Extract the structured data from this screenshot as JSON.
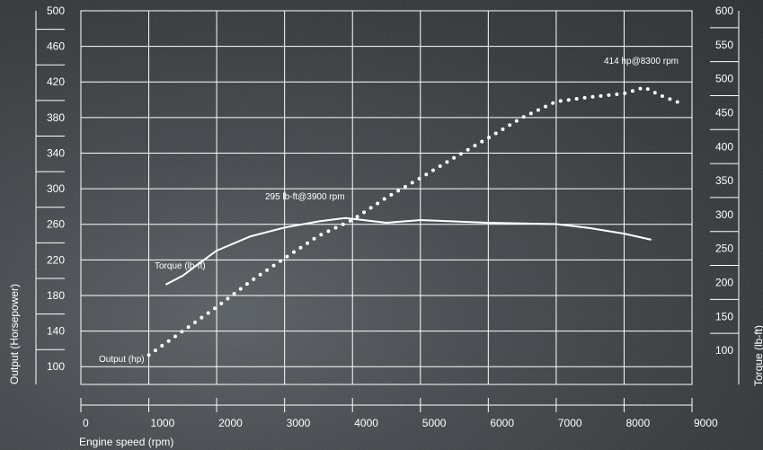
{
  "chart_data": {
    "type": "line",
    "xlabel": "Engine speed (rpm)",
    "ylabel_left": "Output (Horsepower)",
    "ylabel_right": "Torque (lb-ft)",
    "x_ticks": [
      0,
      1000,
      2000,
      3000,
      4000,
      5000,
      6000,
      7000,
      8000,
      9000
    ],
    "xlim": [
      0,
      9000
    ],
    "y_left_ticks": [
      100,
      140,
      180,
      220,
      260,
      300,
      340,
      380,
      420,
      460,
      500
    ],
    "y_left_range": [
      80,
      500
    ],
    "y_right_ticks": [
      100,
      150,
      200,
      250,
      300,
      350,
      400,
      450,
      500,
      550,
      600
    ],
    "y_right_range": [
      50,
      600
    ],
    "grid": true,
    "series": [
      {
        "name": "Torque (lb-ft)",
        "axis": "right",
        "style": "solid",
        "x": [
          1250,
          1500,
          1700,
          2000,
          2500,
          3000,
          3500,
          3900,
          4500,
          5000,
          5500,
          6000,
          7000,
          7500,
          8000,
          8400
        ],
        "values": [
          197,
          210,
          225,
          247,
          268,
          281,
          290,
          295,
          288,
          292,
          290,
          288,
          286,
          280,
          272,
          263
        ]
      },
      {
        "name": "Output (hp)",
        "axis": "left",
        "style": "dotted",
        "x": [
          1000,
          1500,
          2000,
          2500,
          3000,
          3500,
          4000,
          4500,
          5000,
          5500,
          6000,
          6500,
          7000,
          7500,
          8000,
          8300,
          8500,
          8800
        ],
        "values": [
          113,
          140,
          167,
          196,
          222,
          247,
          265,
          290,
          312,
          335,
          357,
          380,
          398,
          403,
          407,
          414,
          406,
          397
        ]
      }
    ],
    "annotations": [
      {
        "text": "414 hp@8300 rpm"
      },
      {
        "text": "295 lb-ft@3900 rpm"
      },
      {
        "text": "Torque (lb-ft)"
      },
      {
        "text": "Output (hp)"
      }
    ]
  }
}
